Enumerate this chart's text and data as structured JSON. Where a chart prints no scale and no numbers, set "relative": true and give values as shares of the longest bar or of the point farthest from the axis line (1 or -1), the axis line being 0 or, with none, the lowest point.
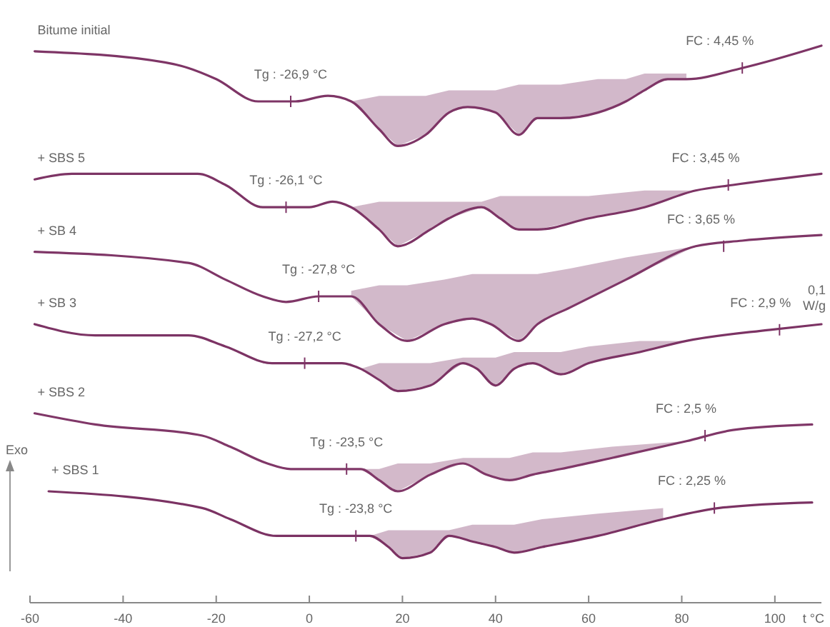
{
  "chart_data": {
    "type": "line",
    "relative": true,
    "xlabel": "t °C",
    "xlim": [
      -60,
      110
    ],
    "xticks": [
      -60,
      -40,
      -20,
      0,
      20,
      40,
      60,
      80,
      100
    ],
    "series": [
      {
        "name": "Bitume initial",
        "color": "#7e3566",
        "x": [
          -59,
          -31,
          -26,
          -20,
          -11,
          -7,
          -3,
          4,
          9,
          15,
          19,
          25,
          30,
          34,
          40,
          45,
          49,
          54,
          62,
          68,
          72,
          77,
          81,
          93,
          110
        ],
        "values": [
          0.99,
          0.97,
          0.96,
          0.94,
          0.9,
          0.9,
          0.9,
          0.91,
          0.9,
          0.85,
          0.82,
          0.84,
          0.88,
          0.89,
          0.88,
          0.84,
          0.87,
          0.87,
          0.88,
          0.9,
          0.92,
          0.94,
          0.94,
          0.96,
          1
        ],
        "lower": [
          null,
          null,
          null,
          null,
          null,
          null,
          null,
          null,
          0.9,
          0.85,
          0.82,
          0.84,
          0.88,
          0.89,
          0.88,
          0.84,
          0.87,
          0.87,
          0.88,
          0.9,
          0.92,
          0.94,
          0.94,
          null,
          null
        ],
        "upper": [
          null,
          null,
          null,
          null,
          null,
          null,
          null,
          null,
          0.9,
          0.91,
          0.91,
          0.91,
          0.92,
          0.92,
          0.92,
          0.93,
          0.93,
          0.93,
          0.94,
          0.94,
          0.95,
          0.95,
          0.95,
          null,
          null
        ]
      },
      {
        "name": "+ SBS 5",
        "color": "#7d3465",
        "x": [
          -59,
          -51,
          -31,
          -24,
          -18,
          -10,
          -5,
          0,
          5,
          9,
          15,
          19,
          26,
          30,
          37,
          41,
          45,
          49,
          60,
          72,
          83,
          91,
          110
        ],
        "values": [
          0.76,
          0.77,
          0.77,
          0.77,
          0.75,
          0.71,
          0.71,
          0.71,
          0.72,
          0.71,
          0.67,
          0.64,
          0.67,
          0.69,
          0.71,
          0.69,
          0.67,
          0.67,
          0.69,
          0.71,
          0.74,
          0.75,
          0.77
        ],
        "lower": [
          null,
          null,
          null,
          null,
          null,
          null,
          null,
          null,
          null,
          0.71,
          0.67,
          0.64,
          0.67,
          0.69,
          0.71,
          0.69,
          0.67,
          0.67,
          0.69,
          0.71,
          0.74,
          null,
          null
        ],
        "upper": [
          null,
          null,
          null,
          null,
          null,
          null,
          null,
          null,
          null,
          0.71,
          0.72,
          0.72,
          0.72,
          0.72,
          0.72,
          0.73,
          0.73,
          0.73,
          0.73,
          0.74,
          0.74,
          null,
          null
        ]
      },
      {
        "name": "+ SB 4",
        "color": "#7f3667",
        "x": [
          -59,
          -26,
          -18,
          -10,
          -5,
          2,
          9,
          15,
          21,
          29,
          35,
          39,
          45,
          49,
          56,
          68,
          83,
          93,
          110
        ],
        "values": [
          0.63,
          0.61,
          0.58,
          0.55,
          0.54,
          0.55,
          0.55,
          0.5,
          0.47,
          0.5,
          0.51,
          0.5,
          0.47,
          0.5,
          0.53,
          0.58,
          0.64,
          0.65,
          0.66
        ],
        "lower": [
          null,
          null,
          null,
          null,
          null,
          null,
          0.55,
          0.5,
          0.47,
          0.5,
          0.51,
          0.5,
          0.47,
          0.5,
          0.53,
          0.58,
          0.64,
          null,
          null
        ],
        "upper": [
          null,
          null,
          null,
          null,
          null,
          null,
          0.56,
          0.57,
          0.57,
          0.58,
          0.59,
          0.59,
          0.59,
          0.59,
          0.6,
          0.62,
          0.64,
          null,
          null
        ]
      },
      {
        "name": "+ SB 3",
        "color": "#7c3364",
        "x": [
          -59,
          -46,
          -26,
          -18,
          -8,
          -1,
          7,
          11,
          15,
          19,
          26,
          33,
          36,
          40,
          44,
          48,
          54,
          60,
          71,
          81,
          99,
          110
        ],
        "values": [
          0.5,
          0.48,
          0.48,
          0.46,
          0.43,
          0.43,
          0.43,
          0.42,
          0.4,
          0.38,
          0.39,
          0.43,
          0.42,
          0.39,
          0.42,
          0.43,
          0.41,
          0.43,
          0.45,
          0.47,
          0.49,
          0.5
        ],
        "lower": [
          null,
          null,
          null,
          null,
          null,
          null,
          null,
          0.42,
          0.4,
          0.38,
          0.39,
          0.43,
          0.42,
          0.39,
          0.42,
          0.43,
          0.41,
          0.43,
          0.45,
          0.47,
          null,
          null
        ],
        "upper": [
          null,
          null,
          null,
          null,
          null,
          null,
          null,
          0.42,
          0.43,
          0.43,
          0.43,
          0.44,
          0.44,
          0.44,
          0.45,
          0.45,
          0.45,
          0.46,
          0.47,
          0.47,
          null,
          null
        ]
      },
      {
        "name": "+ SBS 2",
        "color": "#803768",
        "x": [
          -59,
          -46,
          -23,
          -17,
          -9,
          -4,
          3,
          11,
          15,
          19,
          26,
          33,
          38,
          43,
          48,
          54,
          65,
          81,
          91,
          108
        ],
        "values": [
          0.34,
          0.32,
          0.3,
          0.28,
          0.25,
          0.24,
          0.24,
          0.24,
          0.22,
          0.2,
          0.23,
          0.25,
          0.23,
          0.22,
          0.23,
          0.24,
          0.26,
          0.29,
          0.31,
          0.32
        ],
        "lower": [
          null,
          null,
          null,
          null,
          null,
          null,
          null,
          0.24,
          0.22,
          0.2,
          0.23,
          0.25,
          0.23,
          0.22,
          0.23,
          0.24,
          0.26,
          0.29,
          null,
          null
        ],
        "upper": [
          null,
          null,
          null,
          null,
          null,
          null,
          null,
          0.24,
          0.24,
          0.25,
          0.25,
          0.26,
          0.26,
          0.26,
          0.27,
          0.27,
          0.28,
          0.29,
          null,
          null
        ]
      },
      {
        "name": "+ SBS 1",
        "color": "#7b3263",
        "x": [
          -56,
          -23,
          -17,
          -7,
          -1,
          7,
          13,
          17,
          20,
          26,
          30,
          35,
          40,
          44,
          50,
          62,
          76,
          88,
          108
        ],
        "values": [
          0.2,
          0.17,
          0.15,
          0.12,
          0.12,
          0.12,
          0.12,
          0.1,
          0.08,
          0.09,
          0.12,
          0.11,
          0.1,
          0.09,
          0.1,
          0.12,
          0.15,
          0.17,
          0.18
        ],
        "lower": [
          null,
          null,
          null,
          null,
          null,
          null,
          0.12,
          0.1,
          0.08,
          0.09,
          0.12,
          0.11,
          0.1,
          0.09,
          0.1,
          0.12,
          0.15,
          null,
          null
        ],
        "upper": [
          null,
          null,
          null,
          null,
          null,
          null,
          0.12,
          0.13,
          0.13,
          0.13,
          0.13,
          0.14,
          0.14,
          0.14,
          0.15,
          0.16,
          0.17,
          null,
          null
        ]
      }
    ],
    "annotations": [
      {
        "text": "Tg : -26,9 °C",
        "x": -4,
        "y": 0.9
      },
      {
        "text": "Tg : -26,1 °C",
        "x": -5,
        "y": 0.71
      },
      {
        "text": "Tg : -27,8 °C",
        "x": 2,
        "y": 0.55
      },
      {
        "text": "Tg : -27,2 °C",
        "x": -1,
        "y": 0.43
      },
      {
        "text": "Tg : -23,5 °C",
        "x": 8,
        "y": 0.24
      },
      {
        "text": "Tg : -23,8 °C",
        "x": 10,
        "y": 0.12
      },
      {
        "text": "FC : 4,45 %",
        "x": 93,
        "y": 0.96
      },
      {
        "text": "FC : 3,45 %",
        "x": 90,
        "y": 0.75
      },
      {
        "text": "FC : 3,65 %",
        "x": 89,
        "y": 0.64
      },
      {
        "text": "FC : 2,9 %",
        "x": 101,
        "y": 0.49
      },
      {
        "text": "FC : 2,5 %",
        "x": 85,
        "y": 0.3
      },
      {
        "text": "FC : 2,25 %",
        "x": 87,
        "y": 0.17
      },
      "Exo",
      "0,1 W/g"
    ]
  }
}
